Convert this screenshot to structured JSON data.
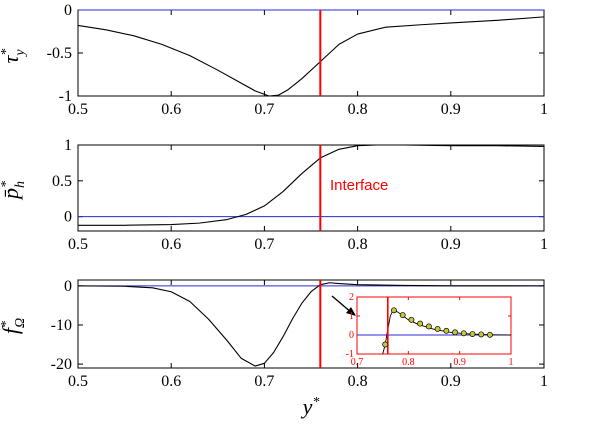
{
  "colors": {
    "curve": "#000000",
    "zero_line": "#2a2ad8",
    "interface": "#ff0000",
    "marker_fill": "#c8c832"
  },
  "xlabel": "y*",
  "chart_data": [
    {
      "id": "tau",
      "type": "line",
      "ylabel_main": "τ",
      "ylabel_sup": "*",
      "ylabel_sub": "y",
      "xlim": [
        0.5,
        1.0
      ],
      "ylim": [
        -1.0,
        0.0
      ],
      "xticks": [
        "0.5",
        "0.6",
        "0.7",
        "0.8",
        "0.9",
        "1"
      ],
      "yticks": [
        "0",
        "-0.5",
        "-1"
      ],
      "ytick_values": [
        0,
        -0.5,
        -1
      ],
      "interface_x": 0.76,
      "zero_line": 0,
      "series": [
        {
          "x": [
            0.5,
            0.53,
            0.56,
            0.59,
            0.62,
            0.65,
            0.67,
            0.69,
            0.705,
            0.715,
            0.725,
            0.74,
            0.76,
            0.78,
            0.8,
            0.83,
            0.87,
            0.9,
            0.95,
            1.0
          ],
          "y": [
            -0.18,
            -0.23,
            -0.3,
            -0.4,
            -0.53,
            -0.7,
            -0.82,
            -0.94,
            -1.0,
            -0.99,
            -0.93,
            -0.8,
            -0.6,
            -0.4,
            -0.28,
            -0.2,
            -0.17,
            -0.15,
            -0.12,
            -0.08
          ]
        }
      ]
    },
    {
      "id": "ph",
      "type": "line",
      "ylabel_main": "p̄",
      "ylabel_sup": "*",
      "ylabel_sub": "h",
      "xlim": [
        0.5,
        1.0
      ],
      "ylim": [
        -0.2,
        1.0
      ],
      "xticks": [
        "0.5",
        "0.6",
        "0.7",
        "0.8",
        "0.9",
        "1"
      ],
      "yticks": [
        "1",
        "0.5",
        "0"
      ],
      "ytick_values": [
        1,
        0.5,
        0
      ],
      "interface_x": 0.76,
      "zero_line": 0,
      "annotation": "Interface",
      "series": [
        {
          "x": [
            0.5,
            0.55,
            0.6,
            0.63,
            0.66,
            0.68,
            0.7,
            0.72,
            0.74,
            0.76,
            0.78,
            0.8,
            0.82,
            0.85,
            0.9,
            0.95,
            1.0
          ],
          "y": [
            -0.12,
            -0.12,
            -0.11,
            -0.09,
            -0.04,
            0.03,
            0.15,
            0.35,
            0.6,
            0.82,
            0.94,
            0.99,
            1.0,
            1.0,
            0.99,
            0.99,
            0.98
          ]
        }
      ]
    },
    {
      "id": "f",
      "type": "line",
      "ylabel_main": "f",
      "ylabel_sup": "*",
      "ylabel_sub": "Ω",
      "xlim": [
        0.5,
        1.0
      ],
      "ylim": [
        -21,
        1.5
      ],
      "xticks": [
        "0.5",
        "0.6",
        "0.7",
        "0.8",
        "0.9",
        "1"
      ],
      "yticks": [
        "0",
        "-10",
        "-20"
      ],
      "ytick_values": [
        0,
        -10,
        -20
      ],
      "interface_x": 0.76,
      "zero_line": 0,
      "series": [
        {
          "x": [
            0.5,
            0.55,
            0.58,
            0.6,
            0.62,
            0.64,
            0.66,
            0.675,
            0.69,
            0.7,
            0.71,
            0.72,
            0.73,
            0.74,
            0.75,
            0.76,
            0.77,
            0.78,
            0.8,
            0.85,
            0.9,
            1.0
          ],
          "y": [
            0,
            -0.1,
            -0.5,
            -1.5,
            -4,
            -8.5,
            -14,
            -18.5,
            -20.5,
            -19.8,
            -17,
            -13,
            -8.5,
            -4.5,
            -1.5,
            0.3,
            0.8,
            0.6,
            0.3,
            0.1,
            0.02,
            0
          ]
        }
      ]
    },
    {
      "id": "f_inset",
      "type": "line",
      "xlim": [
        0.7,
        1.0
      ],
      "ylim": [
        -1,
        2
      ],
      "xticks": [
        "0.7",
        "0.8",
        "0.9",
        "1"
      ],
      "yticks": [
        "2",
        "1",
        "0",
        "-1"
      ],
      "ytick_values": [
        2,
        1,
        0,
        -1
      ],
      "interface_x": 0.76,
      "zero_line": 0,
      "series": [
        {
          "x": [
            0.75,
            0.755,
            0.76,
            0.765,
            0.77,
            0.78,
            0.79,
            0.8,
            0.82,
            0.85,
            0.88,
            0.91,
            0.94,
            0.97,
            1.0
          ],
          "y": [
            -1,
            -0.5,
            0.3,
            1.0,
            1.3,
            1.2,
            1.0,
            0.8,
            0.55,
            0.3,
            0.15,
            0.07,
            0.03,
            0.01,
            0
          ]
        }
      ],
      "markers": {
        "x": [
          0.755,
          0.772,
          0.789,
          0.806,
          0.823,
          0.84,
          0.857,
          0.874,
          0.891,
          0.908,
          0.925,
          0.942,
          0.959
        ],
        "y": [
          -0.5,
          1.3,
          1.05,
          0.8,
          0.6,
          0.45,
          0.32,
          0.22,
          0.14,
          0.09,
          0.05,
          0.03,
          0.01
        ]
      }
    }
  ]
}
